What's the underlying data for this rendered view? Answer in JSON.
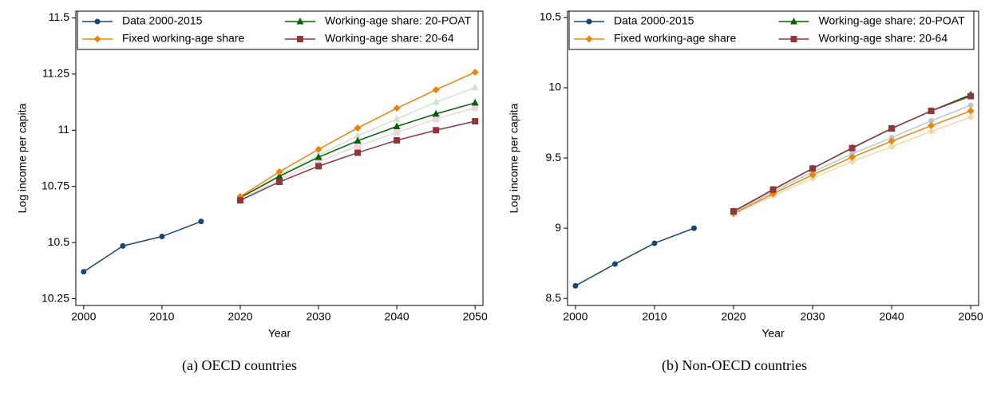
{
  "chart_data": [
    {
      "type": "line",
      "caption": "(a) OECD countries",
      "xlabel": "Year",
      "ylabel": "Log income per capita",
      "x": [
        2000,
        2005,
        2010,
        2015,
        2020,
        2025,
        2030,
        2035,
        2040,
        2045,
        2050
      ],
      "xlim": [
        1999,
        2051
      ],
      "xticks": [
        2000,
        2010,
        2020,
        2030,
        2040,
        2050
      ],
      "ylim": [
        10.22,
        11.53
      ],
      "yticks": [
        10.25,
        10.5,
        10.75,
        11,
        11.25,
        11.5
      ],
      "legend": "top-left",
      "series": [
        {
          "name": "Data 2000-2015",
          "color": "#1a476f",
          "marker": "circle",
          "values": [
            10.37,
            10.485,
            10.527,
            10.594,
            null,
            null,
            null,
            null,
            null,
            null,
            null
          ]
        },
        {
          "name": "Working-age share: 20-POAT",
          "color": "#006400",
          "marker": "triangle",
          "values": [
            null,
            null,
            null,
            null,
            10.7,
            10.795,
            10.88,
            10.953,
            11.017,
            11.073,
            11.122
          ]
        },
        {
          "name": "Fixed working-age share",
          "color": "#e8850c",
          "marker": "diamond",
          "values": [
            null,
            null,
            null,
            null,
            10.705,
            10.815,
            10.915,
            11.01,
            11.098,
            11.18,
            11.258
          ]
        },
        {
          "name": "Working-age share: 20-64",
          "color": "#90353b",
          "marker": "square",
          "values": [
            null,
            null,
            null,
            null,
            10.688,
            10.77,
            10.84,
            10.9,
            10.955,
            11.0,
            11.04
          ]
        },
        {
          "color": "#cfe3cf",
          "marker": "triangle",
          "values": [
            null,
            null,
            null,
            null,
            10.7,
            10.8,
            10.89,
            10.975,
            11.05,
            11.125,
            11.19
          ]
        },
        {
          "color": "#ead7da",
          "marker": "square",
          "values": [
            null,
            null,
            null,
            null,
            10.69,
            10.78,
            10.86,
            10.93,
            10.99,
            11.05,
            11.1
          ]
        }
      ]
    },
    {
      "type": "line",
      "caption": "(b) Non-OECD countries",
      "xlabel": "Year",
      "ylabel": "Log income per capita",
      "x": [
        2000,
        2005,
        2010,
        2015,
        2020,
        2025,
        2030,
        2035,
        2040,
        2045,
        2050
      ],
      "xlim": [
        1999,
        2051
      ],
      "xticks": [
        2000,
        2010,
        2020,
        2030,
        2040,
        2050
      ],
      "ylim": [
        8.45,
        10.545
      ],
      "yticks": [
        8.5,
        9,
        9.5,
        10,
        10.5
      ],
      "legend": "top-left",
      "series": [
        {
          "name": "Data 2000-2015",
          "color": "#1a476f",
          "marker": "circle",
          "values": [
            8.59,
            8.745,
            8.893,
            9.0,
            null,
            null,
            null,
            null,
            null,
            null,
            null
          ]
        },
        {
          "name": "Working-age share: 20-POAT",
          "color": "#006400",
          "marker": "triangle",
          "values": [
            null,
            null,
            null,
            null,
            9.12,
            9.275,
            9.425,
            9.572,
            9.71,
            9.835,
            9.95
          ]
        },
        {
          "name": "Fixed working-age share",
          "color": "#e8850c",
          "marker": "diamond",
          "values": [
            null,
            null,
            null,
            null,
            9.105,
            9.245,
            9.38,
            9.505,
            9.62,
            9.73,
            9.835
          ]
        },
        {
          "name": "Working-age share: 20-64",
          "color": "#90353b",
          "marker": "square",
          "values": [
            null,
            null,
            null,
            null,
            9.12,
            9.275,
            9.425,
            9.57,
            9.71,
            9.835,
            9.94
          ]
        },
        {
          "color": "#b8c8d0",
          "marker": "circle",
          "values": [
            null,
            null,
            null,
            null,
            9.115,
            9.26,
            9.4,
            9.53,
            9.645,
            9.765,
            9.875
          ]
        },
        {
          "color": "#f8d8a8",
          "marker": "diamond",
          "values": [
            null,
            null,
            null,
            null,
            9.1,
            9.23,
            9.355,
            9.475,
            9.58,
            9.69,
            9.79
          ]
        }
      ]
    }
  ]
}
